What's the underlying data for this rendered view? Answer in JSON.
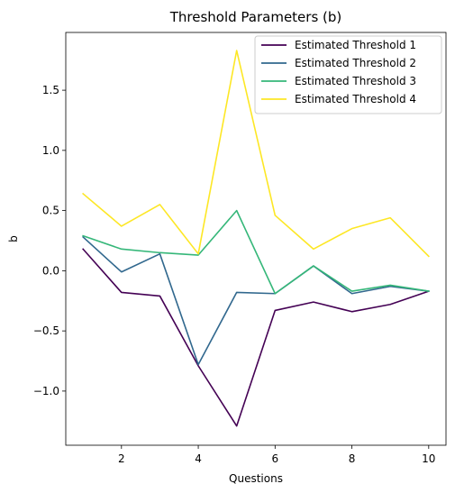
{
  "chart_data": {
    "type": "line",
    "title": "Threshold Parameters (b)",
    "xlabel": "Questions",
    "ylabel": "b",
    "x": [
      1,
      2,
      3,
      4,
      5,
      6,
      7,
      8,
      9,
      10
    ],
    "xlim": [
      0.55,
      10.45
    ],
    "ylim": [
      -1.45,
      1.98
    ],
    "xticks": [
      2,
      4,
      6,
      8,
      10
    ],
    "xtick_labels": [
      "2",
      "4",
      "6",
      "8",
      "10"
    ],
    "yticks": [
      -1.0,
      -0.5,
      0.0,
      0.5,
      1.0,
      1.5
    ],
    "ytick_labels": [
      "−1.0",
      "−0.5",
      "0.0",
      "0.5",
      "1.0",
      "1.5"
    ],
    "grid": false,
    "legend_position": "top-right",
    "series": [
      {
        "name": "Estimated Threshold 1",
        "color": "#440154",
        "values": [
          0.18,
          -0.18,
          -0.21,
          -0.79,
          -1.29,
          -0.33,
          -0.26,
          -0.34,
          -0.28,
          -0.17
        ]
      },
      {
        "name": "Estimated Threshold 2",
        "color": "#31688e",
        "values": [
          0.28,
          -0.01,
          0.14,
          -0.78,
          -0.18,
          -0.19,
          0.04,
          -0.19,
          -0.13,
          -0.17
        ]
      },
      {
        "name": "Estimated Threshold 3",
        "color": "#35b779",
        "values": [
          0.29,
          0.18,
          0.15,
          0.13,
          0.5,
          -0.19,
          0.04,
          -0.17,
          -0.12,
          -0.17
        ]
      },
      {
        "name": "Estimated Threshold 4",
        "color": "#fde725",
        "values": [
          0.64,
          0.37,
          0.55,
          0.14,
          1.83,
          0.46,
          0.18,
          0.35,
          0.44,
          0.12
        ]
      }
    ]
  }
}
